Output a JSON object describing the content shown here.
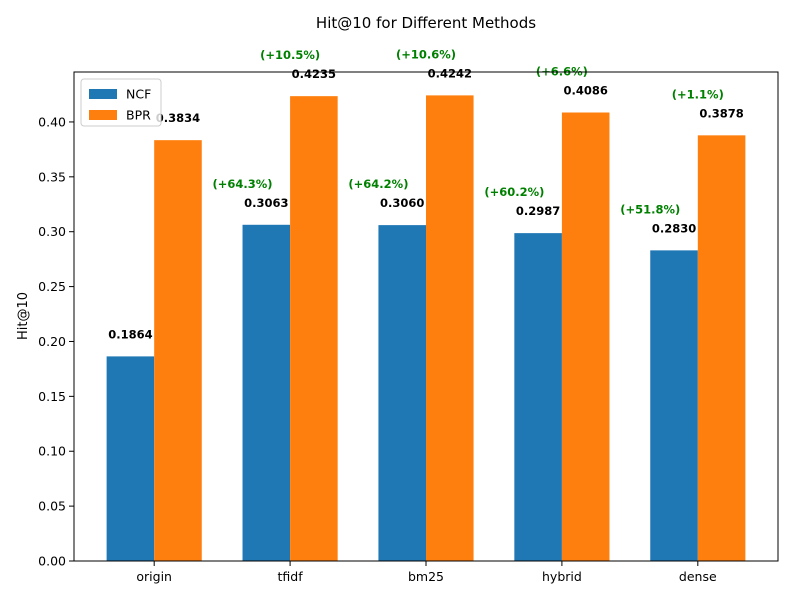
{
  "chart_data": {
    "type": "bar",
    "title": "Hit@10 for Different Methods",
    "xlabel": "",
    "ylabel": "Hit@10",
    "categories": [
      "origin",
      "tfidf",
      "bm25",
      "hybrid",
      "dense"
    ],
    "ylim": [
      0,
      0.4455
    ],
    "yticks": [
      "0.00",
      "0.05",
      "0.10",
      "0.15",
      "0.20",
      "0.25",
      "0.30",
      "0.35",
      "0.40"
    ],
    "series": [
      {
        "name": "NCF",
        "color": "#1f77b4",
        "values": [
          0.1864,
          0.3063,
          0.306,
          0.2987,
          0.283
        ],
        "value_labels": [
          "0.1864",
          "0.3063",
          "0.3060",
          "0.2987",
          "0.2830"
        ],
        "improvement_labels": [
          "",
          "(+64.3%)",
          "(+64.2%)",
          "(+60.2%)",
          "(+51.8%)"
        ]
      },
      {
        "name": "BPR",
        "color": "#ff7f0e",
        "values": [
          0.3834,
          0.4235,
          0.4242,
          0.4086,
          0.3878
        ],
        "value_labels": [
          "0.3834",
          "0.4235",
          "0.4242",
          "0.4086",
          "0.3878"
        ],
        "improvement_labels": [
          "",
          "(+10.5%)",
          "(+10.6%)",
          "(+6.6%)",
          "(+1.1%)"
        ]
      }
    ],
    "improvement_color": "#008000",
    "legend_position": "upper-left",
    "grid": false
  }
}
